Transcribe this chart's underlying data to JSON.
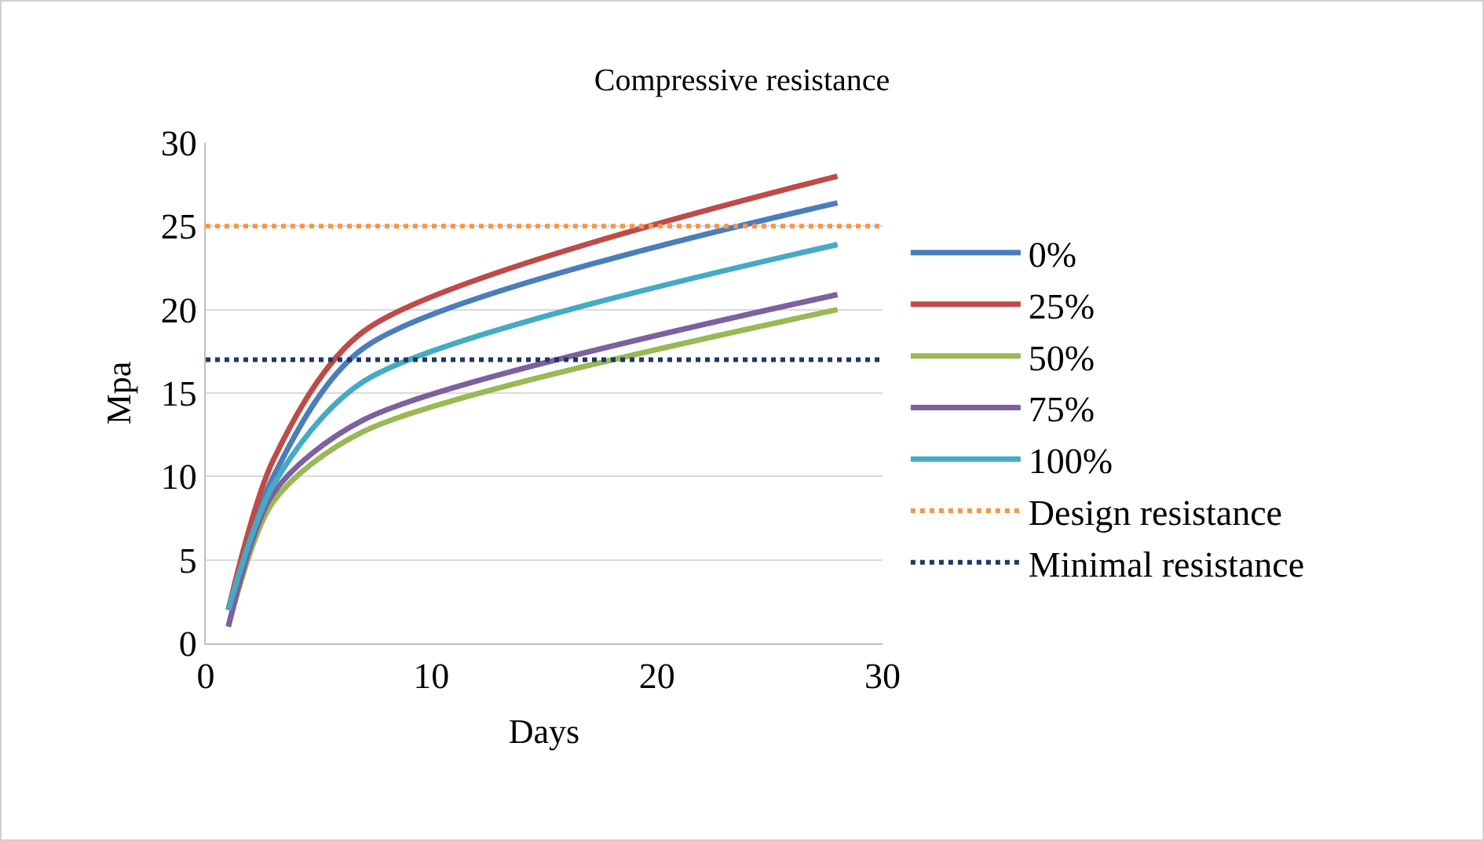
{
  "chart_data": {
    "type": "line",
    "title": "Compressive resistance",
    "xlabel": "Days",
    "ylabel": "Mpa",
    "x": [
      1,
      3,
      7,
      28
    ],
    "series": [
      {
        "name": "0%",
        "color": "#4a7ebb",
        "values": [
          2,
          10,
          17.7,
          26.4
        ]
      },
      {
        "name": "25%",
        "color": "#be4b48",
        "values": [
          2,
          11,
          18.7,
          28
        ]
      },
      {
        "name": "50%",
        "color": "#98b954",
        "values": [
          1,
          8.5,
          12.7,
          20
        ]
      },
      {
        "name": "75%",
        "color": "#7d60a0",
        "values": [
          1,
          9,
          13.4,
          20.9
        ]
      },
      {
        "name": "100%",
        "color": "#46aac5",
        "values": [
          2,
          9.5,
          15.7,
          23.9
        ]
      }
    ],
    "ref_lines": [
      {
        "axis": "y",
        "value": 25,
        "label": "Design resistance",
        "color": "#f79646",
        "line_style": "dotted"
      },
      {
        "axis": "y",
        "value": 17,
        "label": "Minimal resistance",
        "color": "#1f3864",
        "line_style": "dotted"
      }
    ],
    "xlim": [
      0,
      30
    ],
    "xticks": [
      0,
      10,
      20,
      30
    ],
    "ylim": [
      0,
      30
    ],
    "yticks": [
      0,
      5,
      10,
      15,
      20,
      25,
      30
    ],
    "grid": "y",
    "legend": "right",
    "line_style": "solid",
    "marker": "none"
  }
}
